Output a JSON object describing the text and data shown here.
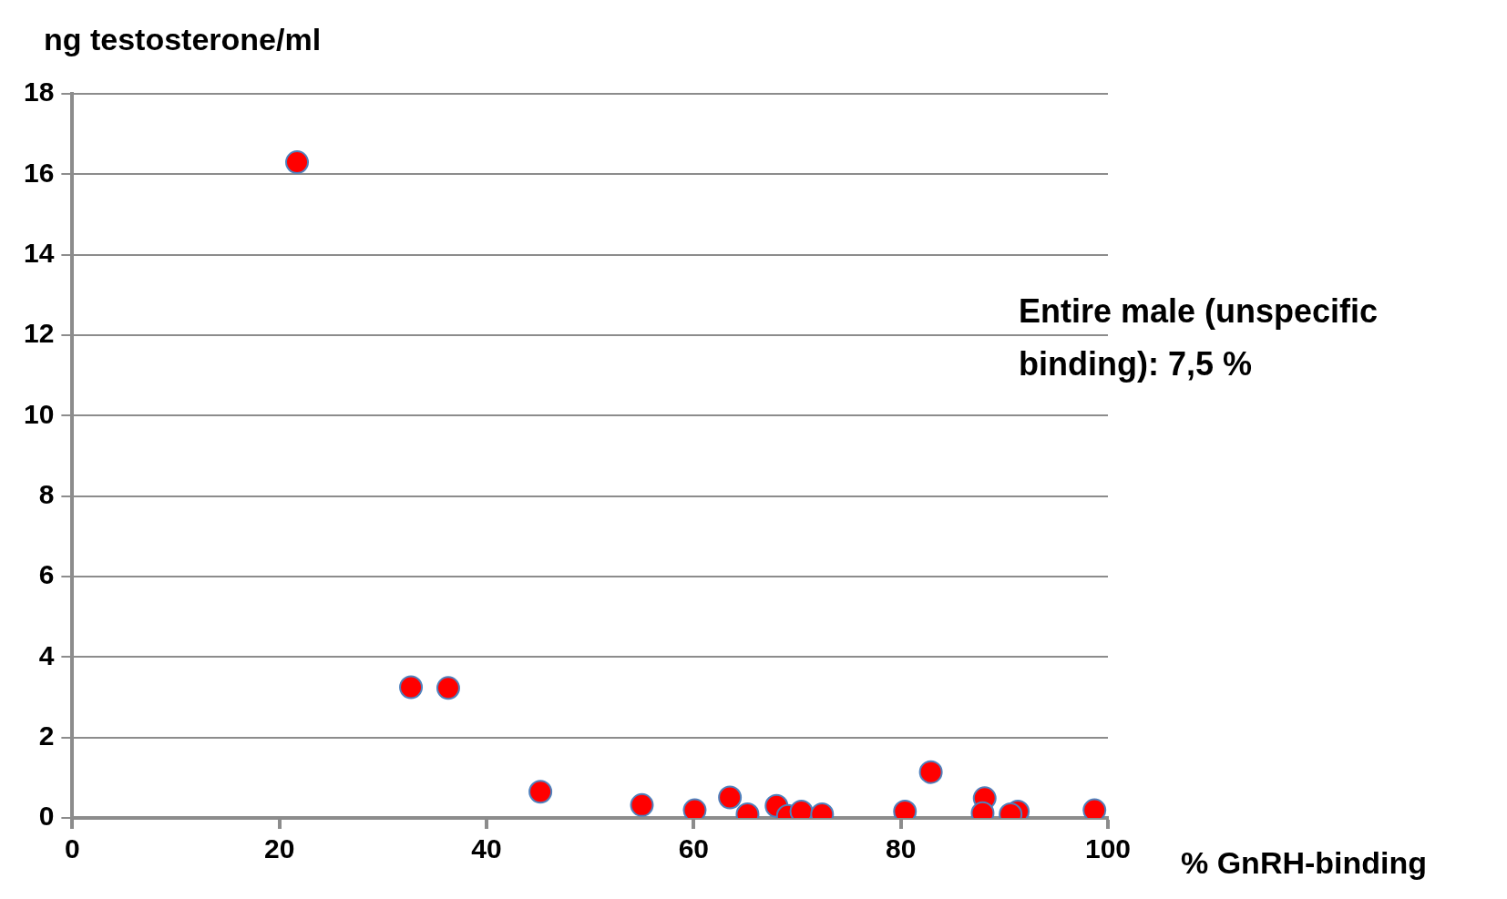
{
  "chart_data": {
    "type": "scatter",
    "ylabel": "ng testosterone/ml",
    "xlabel": "% GnRH-binding",
    "x": [
      21.7,
      32.7,
      36.3,
      45.2,
      55.0,
      60.1,
      63.5,
      65.2,
      68.0,
      69.1,
      70.4,
      72.4,
      80.4,
      82.9,
      88.1,
      87.9,
      91.3,
      90.6,
      98.7
    ],
    "values": [
      16.3,
      3.25,
      3.23,
      0.65,
      0.32,
      0.19,
      0.51,
      0.09,
      0.3,
      0.05,
      0.16,
      0.09,
      0.16,
      1.14,
      0.49,
      0.12,
      0.16,
      0.09,
      0.19
    ],
    "color": "#ff0000",
    "marker": "circle",
    "xlim": [
      0,
      100
    ],
    "xticks": [
      0,
      20,
      40,
      60,
      80,
      100
    ],
    "ylim": [
      0,
      18
    ],
    "yticks": [
      0,
      2,
      4,
      6,
      8,
      10,
      12,
      14,
      16,
      18
    ],
    "grid": "y",
    "legend": false,
    "annotations": [
      "Entire male (unspecific binding): 7,5 %"
    ]
  }
}
